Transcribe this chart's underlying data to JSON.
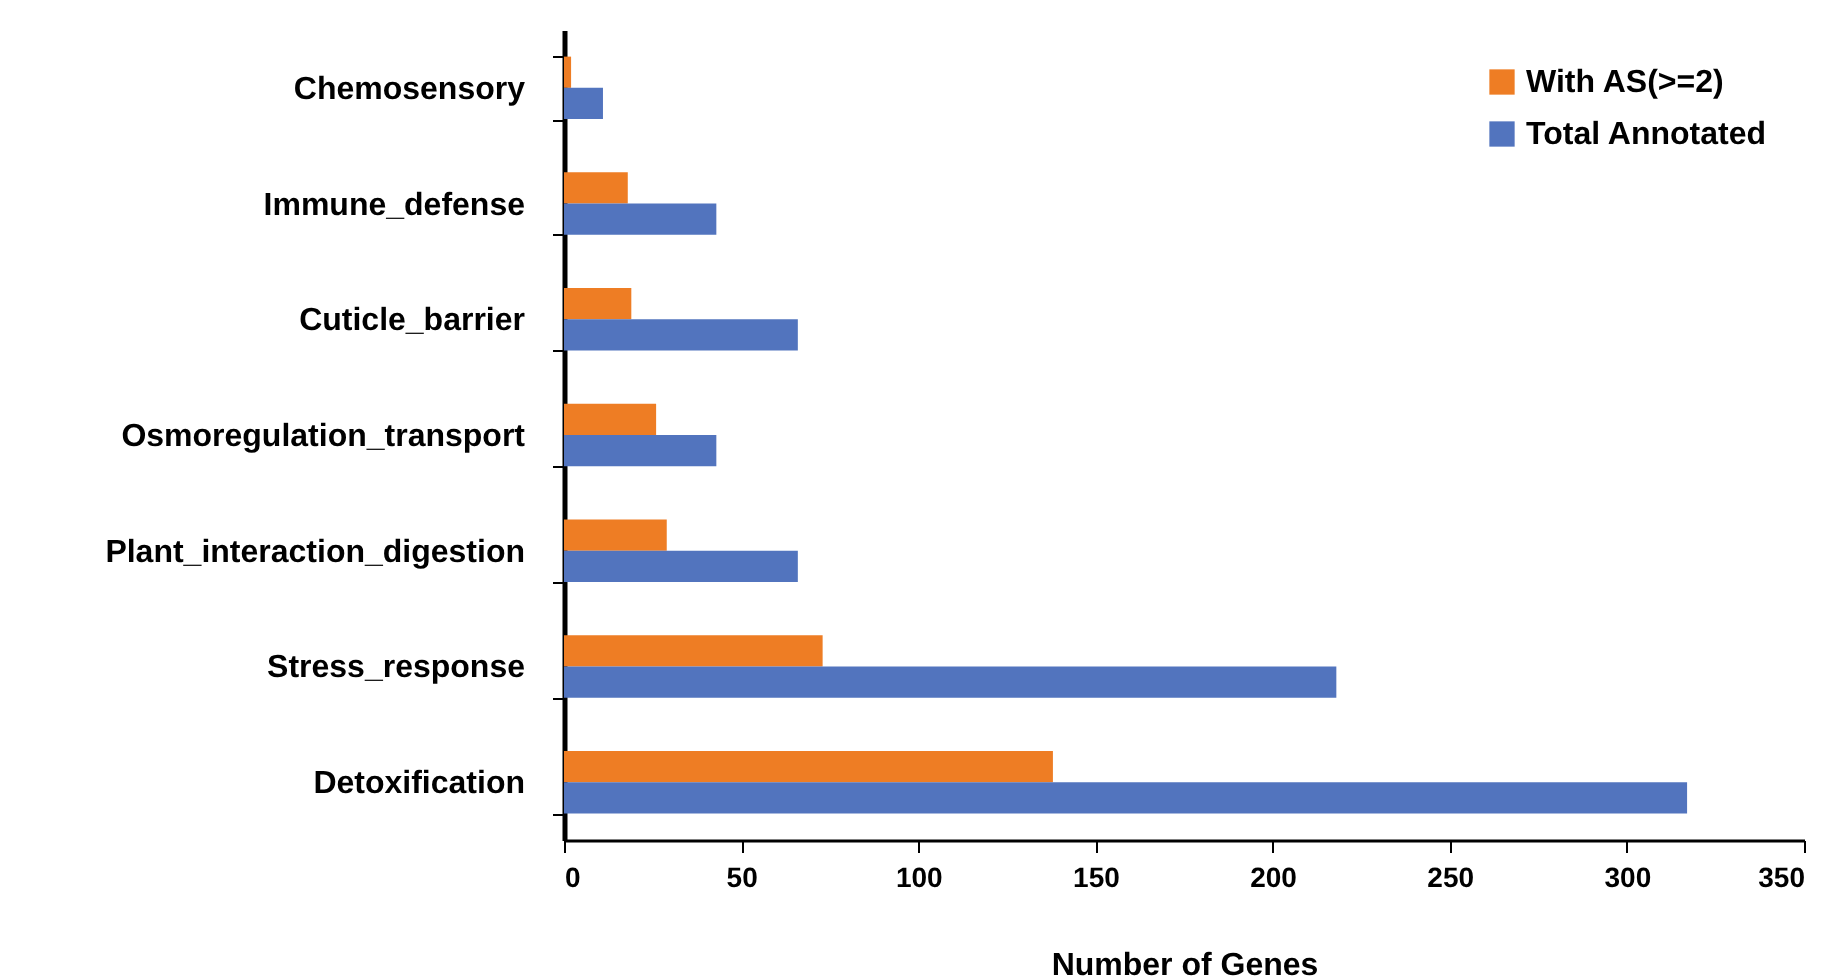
{
  "chart_data": {
    "type": "bar",
    "orientation": "horizontal",
    "xlabel": "Number of Genes",
    "categories": [
      "Chemosensory",
      "Immune_defense",
      "Cuticle_barrier",
      "Osmoregulation_transport",
      "Plant_interaction_digestion",
      "Stress_response",
      "Detoxification"
    ],
    "series": [
      {
        "name": "With AS(>=2)",
        "color": "#ee7d24",
        "values": [
          2,
          18,
          19,
          26,
          29,
          73,
          138
        ]
      },
      {
        "name": "Total Annotated",
        "color": "#5274be",
        "values": [
          11,
          43,
          66,
          43,
          66,
          218,
          317
        ]
      }
    ],
    "xlim": [
      0,
      350
    ],
    "xticks": [
      0,
      50,
      100,
      150,
      200,
      250,
      300,
      350
    ],
    "grid": false,
    "legend": "top right"
  }
}
